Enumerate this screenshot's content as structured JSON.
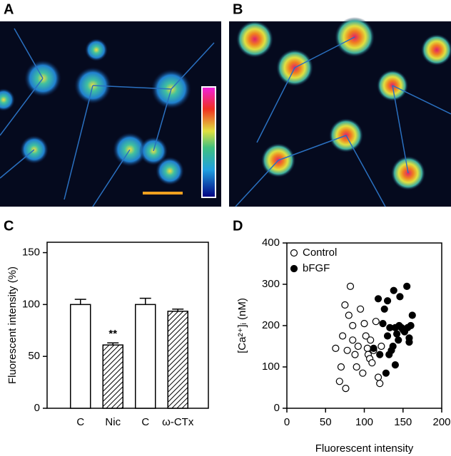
{
  "panel_labels": [
    "A",
    "B",
    "C",
    "D"
  ],
  "chart_data": [
    {
      "type": "bar",
      "y_label": "Fluorescent intensity (%)",
      "categories": [
        "C",
        "Nic",
        "C",
        "ω-CTx"
      ],
      "values": [
        100,
        61,
        100,
        93.5
      ],
      "errors": [
        5,
        2,
        6,
        2
      ],
      "hatch": [
        false,
        true,
        false,
        true
      ],
      "color": "#ffffff",
      "annotations": [
        {
          "text": "**",
          "category_index": 1
        }
      ],
      "ylim": [
        0,
        160
      ],
      "yticks": [
        0,
        50,
        100,
        150
      ]
    },
    {
      "type": "scatter",
      "x_label": "Fluorescent intensity",
      "y_label": "[Ca²⁺]ᵢ (nM)",
      "xlim": [
        0,
        200
      ],
      "ylim": [
        0,
        400
      ],
      "xticks": [
        0,
        50,
        100,
        150,
        200
      ],
      "yticks": [
        0,
        100,
        200,
        300,
        400
      ],
      "legend": "top-left",
      "series": [
        {
          "name": "Control",
          "color": "#000000",
          "marker": "open",
          "x": [
            63,
            68,
            72,
            75,
            76,
            80,
            82,
            78,
            85,
            88,
            90,
            92,
            95,
            98,
            100,
            102,
            104,
            105,
            107,
            110,
            112,
            115,
            118,
            120,
            122,
            108,
            70,
            85
          ],
          "values": [
            145,
            65,
            175,
            250,
            48,
            225,
            295,
            140,
            165,
            130,
            100,
            150,
            240,
            85,
            205,
            175,
            145,
            130,
            120,
            110,
            140,
            210,
            75,
            60,
            150,
            165,
            100,
            200
          ]
        },
        {
          "name": "bFGF",
          "color": "#000000",
          "marker": "filled",
          "x": [
            112,
            118,
            120,
            124,
            126,
            128,
            130,
            130,
            133,
            135,
            137,
            138,
            140,
            140,
            142,
            144,
            146,
            148,
            150,
            152,
            155,
            156,
            158,
            160,
            162,
            158,
            132,
            145
          ],
          "values": [
            145,
            265,
            130,
            205,
            240,
            85,
            260,
            175,
            195,
            140,
            150,
            285,
            195,
            105,
            180,
            165,
            270,
            195,
            190,
            185,
            295,
            195,
            170,
            200,
            225,
            160,
            130,
            200
          ]
        }
      ]
    }
  ]
}
